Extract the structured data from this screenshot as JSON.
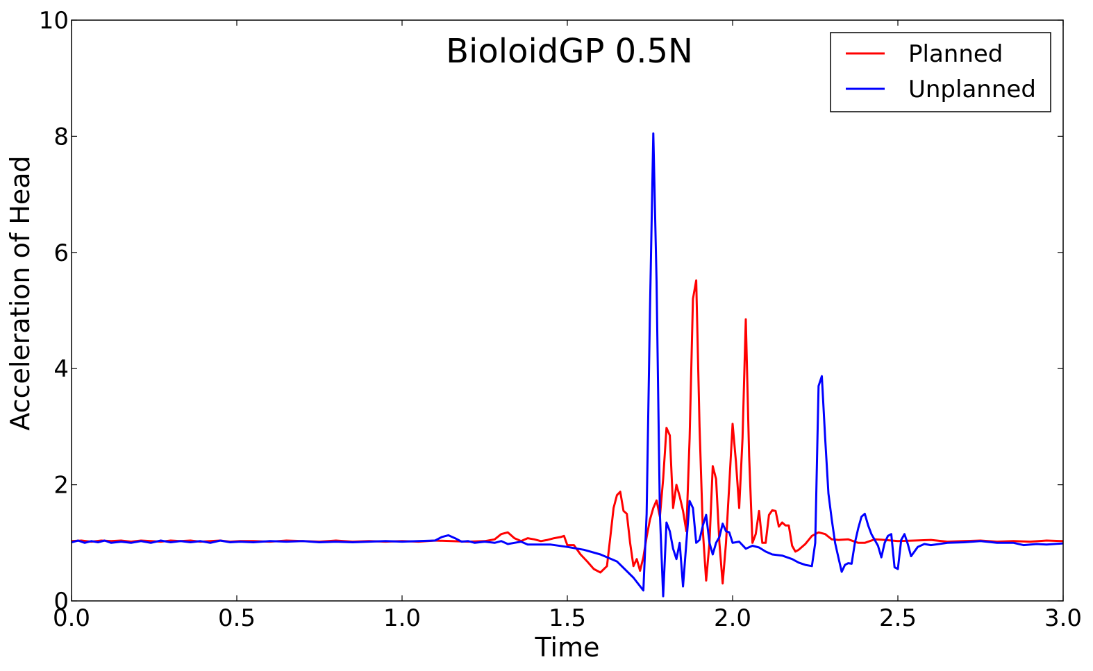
{
  "chart_data": {
    "type": "line",
    "title": "BioloidGP 0.5N",
    "xlabel": "Time",
    "ylabel": "Acceleration of Head",
    "xlim": [
      0,
      3
    ],
    "ylim": [
      0,
      10
    ],
    "xticks": [
      "0.0",
      "0.5",
      "1.0",
      "1.5",
      "2.0",
      "2.5",
      "3.0"
    ],
    "yticks": [
      "0",
      "2",
      "4",
      "6",
      "8",
      "10"
    ],
    "grid": false,
    "legend_position": "top-right",
    "series": [
      {
        "name": "Planned",
        "color": "#ff0000",
        "points": [
          [
            0.0,
            1.03
          ],
          [
            0.03,
            1.04
          ],
          [
            0.06,
            1.02
          ],
          [
            0.09,
            1.04
          ],
          [
            0.12,
            1.03
          ],
          [
            0.15,
            1.04
          ],
          [
            0.18,
            1.02
          ],
          [
            0.21,
            1.04
          ],
          [
            0.24,
            1.03
          ],
          [
            0.27,
            1.02
          ],
          [
            0.3,
            1.04
          ],
          [
            0.33,
            1.03
          ],
          [
            0.36,
            1.04
          ],
          [
            0.39,
            1.02
          ],
          [
            0.42,
            1.03
          ],
          [
            0.45,
            1.04
          ],
          [
            0.48,
            1.02
          ],
          [
            0.51,
            1.03
          ],
          [
            0.55,
            1.03
          ],
          [
            0.6,
            1.02
          ],
          [
            0.65,
            1.04
          ],
          [
            0.7,
            1.03
          ],
          [
            0.75,
            1.02
          ],
          [
            0.8,
            1.04
          ],
          [
            0.85,
            1.02
          ],
          [
            0.9,
            1.03
          ],
          [
            0.95,
            1.02
          ],
          [
            1.0,
            1.03
          ],
          [
            1.05,
            1.02
          ],
          [
            1.1,
            1.04
          ],
          [
            1.15,
            1.03
          ],
          [
            1.2,
            1.02
          ],
          [
            1.25,
            1.03
          ],
          [
            1.28,
            1.06
          ],
          [
            1.3,
            1.15
          ],
          [
            1.32,
            1.18
          ],
          [
            1.34,
            1.08
          ],
          [
            1.36,
            1.03
          ],
          [
            1.38,
            1.08
          ],
          [
            1.4,
            1.06
          ],
          [
            1.42,
            1.03
          ],
          [
            1.44,
            1.05
          ],
          [
            1.46,
            1.08
          ],
          [
            1.48,
            1.1
          ],
          [
            1.49,
            1.12
          ],
          [
            1.5,
            0.96
          ],
          [
            1.52,
            0.96
          ],
          [
            1.54,
            0.8
          ],
          [
            1.56,
            0.68
          ],
          [
            1.58,
            0.55
          ],
          [
            1.6,
            0.49
          ],
          [
            1.62,
            0.6
          ],
          [
            1.63,
            1.1
          ],
          [
            1.64,
            1.6
          ],
          [
            1.65,
            1.82
          ],
          [
            1.66,
            1.88
          ],
          [
            1.67,
            1.55
          ],
          [
            1.68,
            1.5
          ],
          [
            1.69,
            1.0
          ],
          [
            1.7,
            0.6
          ],
          [
            1.71,
            0.72
          ],
          [
            1.72,
            0.52
          ],
          [
            1.73,
            0.75
          ],
          [
            1.74,
            1.1
          ],
          [
            1.75,
            1.4
          ],
          [
            1.76,
            1.6
          ],
          [
            1.77,
            1.73
          ],
          [
            1.78,
            1.45
          ],
          [
            1.79,
            2.1
          ],
          [
            1.8,
            2.98
          ],
          [
            1.81,
            2.85
          ],
          [
            1.82,
            1.6
          ],
          [
            1.83,
            2.0
          ],
          [
            1.84,
            1.8
          ],
          [
            1.85,
            1.55
          ],
          [
            1.86,
            1.2
          ],
          [
            1.87,
            2.8
          ],
          [
            1.88,
            5.2
          ],
          [
            1.89,
            5.52
          ],
          [
            1.9,
            3.0
          ],
          [
            1.91,
            1.2
          ],
          [
            1.92,
            0.35
          ],
          [
            1.93,
            1.0
          ],
          [
            1.94,
            2.32
          ],
          [
            1.95,
            2.1
          ],
          [
            1.96,
            1.0
          ],
          [
            1.97,
            0.3
          ],
          [
            1.98,
            1.0
          ],
          [
            1.99,
            2.0
          ],
          [
            2.0,
            3.05
          ],
          [
            2.01,
            2.4
          ],
          [
            2.02,
            1.6
          ],
          [
            2.03,
            2.8
          ],
          [
            2.04,
            4.85
          ],
          [
            2.05,
            2.5
          ],
          [
            2.06,
            1.0
          ],
          [
            2.07,
            1.15
          ],
          [
            2.08,
            1.55
          ],
          [
            2.09,
            1.0
          ],
          [
            2.1,
            1.0
          ],
          [
            2.11,
            1.48
          ],
          [
            2.12,
            1.56
          ],
          [
            2.13,
            1.55
          ],
          [
            2.14,
            1.28
          ],
          [
            2.15,
            1.35
          ],
          [
            2.16,
            1.3
          ],
          [
            2.17,
            1.3
          ],
          [
            2.18,
            0.95
          ],
          [
            2.19,
            0.85
          ],
          [
            2.2,
            0.88
          ],
          [
            2.22,
            0.98
          ],
          [
            2.24,
            1.12
          ],
          [
            2.26,
            1.18
          ],
          [
            2.28,
            1.15
          ],
          [
            2.3,
            1.06
          ],
          [
            2.32,
            1.05
          ],
          [
            2.35,
            1.06
          ],
          [
            2.38,
            1.0
          ],
          [
            2.4,
            1.0
          ],
          [
            2.43,
            1.06
          ],
          [
            2.46,
            1.05
          ],
          [
            2.5,
            1.03
          ],
          [
            2.55,
            1.04
          ],
          [
            2.6,
            1.05
          ],
          [
            2.65,
            1.02
          ],
          [
            2.7,
            1.03
          ],
          [
            2.75,
            1.04
          ],
          [
            2.8,
            1.02
          ],
          [
            2.85,
            1.03
          ],
          [
            2.9,
            1.02
          ],
          [
            2.95,
            1.04
          ],
          [
            3.0,
            1.03
          ]
        ]
      },
      {
        "name": "Unplanned",
        "color": "#0000ff",
        "points": [
          [
            0.0,
            1.01
          ],
          [
            0.02,
            1.04
          ],
          [
            0.04,
            1.0
          ],
          [
            0.06,
            1.03
          ],
          [
            0.08,
            1.01
          ],
          [
            0.1,
            1.04
          ],
          [
            0.12,
            1.0
          ],
          [
            0.15,
            1.02
          ],
          [
            0.18,
            1.0
          ],
          [
            0.21,
            1.03
          ],
          [
            0.24,
            1.0
          ],
          [
            0.27,
            1.04
          ],
          [
            0.3,
            1.01
          ],
          [
            0.33,
            1.03
          ],
          [
            0.36,
            1.01
          ],
          [
            0.39,
            1.03
          ],
          [
            0.42,
            1.0
          ],
          [
            0.45,
            1.04
          ],
          [
            0.48,
            1.01
          ],
          [
            0.51,
            1.02
          ],
          [
            0.55,
            1.01
          ],
          [
            0.6,
            1.03
          ],
          [
            0.65,
            1.02
          ],
          [
            0.7,
            1.03
          ],
          [
            0.75,
            1.01
          ],
          [
            0.8,
            1.02
          ],
          [
            0.85,
            1.01
          ],
          [
            0.9,
            1.02
          ],
          [
            0.95,
            1.03
          ],
          [
            1.0,
            1.02
          ],
          [
            1.05,
            1.03
          ],
          [
            1.1,
            1.04
          ],
          [
            1.12,
            1.1
          ],
          [
            1.14,
            1.13
          ],
          [
            1.16,
            1.08
          ],
          [
            1.18,
            1.02
          ],
          [
            1.2,
            1.03
          ],
          [
            1.22,
            1.0
          ],
          [
            1.25,
            1.02
          ],
          [
            1.28,
            1.0
          ],
          [
            1.3,
            1.03
          ],
          [
            1.32,
            0.98
          ],
          [
            1.34,
            1.0
          ],
          [
            1.36,
            1.02
          ],
          [
            1.38,
            0.97
          ],
          [
            1.4,
            0.97
          ],
          [
            1.45,
            0.97
          ],
          [
            1.5,
            0.93
          ],
          [
            1.55,
            0.88
          ],
          [
            1.6,
            0.8
          ],
          [
            1.65,
            0.68
          ],
          [
            1.7,
            0.4
          ],
          [
            1.73,
            0.18
          ],
          [
            1.74,
            1.5
          ],
          [
            1.75,
            5.0
          ],
          [
            1.76,
            8.05
          ],
          [
            1.77,
            5.5
          ],
          [
            1.78,
            1.5
          ],
          [
            1.79,
            0.08
          ],
          [
            1.8,
            1.35
          ],
          [
            1.81,
            1.2
          ],
          [
            1.82,
            0.9
          ],
          [
            1.83,
            0.72
          ],
          [
            1.84,
            1.0
          ],
          [
            1.85,
            0.25
          ],
          [
            1.86,
            1.0
          ],
          [
            1.87,
            1.72
          ],
          [
            1.88,
            1.6
          ],
          [
            1.89,
            1.0
          ],
          [
            1.9,
            1.05
          ],
          [
            1.91,
            1.3
          ],
          [
            1.92,
            1.48
          ],
          [
            1.93,
            1.0
          ],
          [
            1.94,
            0.8
          ],
          [
            1.95,
            1.0
          ],
          [
            1.96,
            1.1
          ],
          [
            1.97,
            1.33
          ],
          [
            1.98,
            1.2
          ],
          [
            1.99,
            1.18
          ],
          [
            2.0,
            1.0
          ],
          [
            2.02,
            1.02
          ],
          [
            2.04,
            0.9
          ],
          [
            2.06,
            0.95
          ],
          [
            2.08,
            0.92
          ],
          [
            2.1,
            0.85
          ],
          [
            2.12,
            0.8
          ],
          [
            2.15,
            0.78
          ],
          [
            2.18,
            0.72
          ],
          [
            2.2,
            0.66
          ],
          [
            2.22,
            0.62
          ],
          [
            2.24,
            0.6
          ],
          [
            2.25,
            1.0
          ],
          [
            2.26,
            3.7
          ],
          [
            2.27,
            3.87
          ],
          [
            2.28,
            2.8
          ],
          [
            2.29,
            1.85
          ],
          [
            2.3,
            1.4
          ],
          [
            2.31,
            1.0
          ],
          [
            2.32,
            0.75
          ],
          [
            2.33,
            0.5
          ],
          [
            2.34,
            0.62
          ],
          [
            2.35,
            0.65
          ],
          [
            2.36,
            0.64
          ],
          [
            2.37,
            1.0
          ],
          [
            2.38,
            1.25
          ],
          [
            2.39,
            1.45
          ],
          [
            2.4,
            1.5
          ],
          [
            2.41,
            1.3
          ],
          [
            2.42,
            1.15
          ],
          [
            2.43,
            1.05
          ],
          [
            2.44,
            0.95
          ],
          [
            2.45,
            0.75
          ],
          [
            2.46,
            1.0
          ],
          [
            2.47,
            1.12
          ],
          [
            2.48,
            1.15
          ],
          [
            2.49,
            0.58
          ],
          [
            2.5,
            0.55
          ],
          [
            2.51,
            1.05
          ],
          [
            2.52,
            1.15
          ],
          [
            2.53,
            0.98
          ],
          [
            2.54,
            0.77
          ],
          [
            2.56,
            0.93
          ],
          [
            2.58,
            0.98
          ],
          [
            2.6,
            0.96
          ],
          [
            2.65,
            1.0
          ],
          [
            2.7,
            1.01
          ],
          [
            2.75,
            1.03
          ],
          [
            2.8,
            1.0
          ],
          [
            2.85,
            1.0
          ],
          [
            2.88,
            0.96
          ],
          [
            2.92,
            0.98
          ],
          [
            2.95,
            0.97
          ],
          [
            3.0,
            0.99
          ]
        ]
      }
    ]
  }
}
